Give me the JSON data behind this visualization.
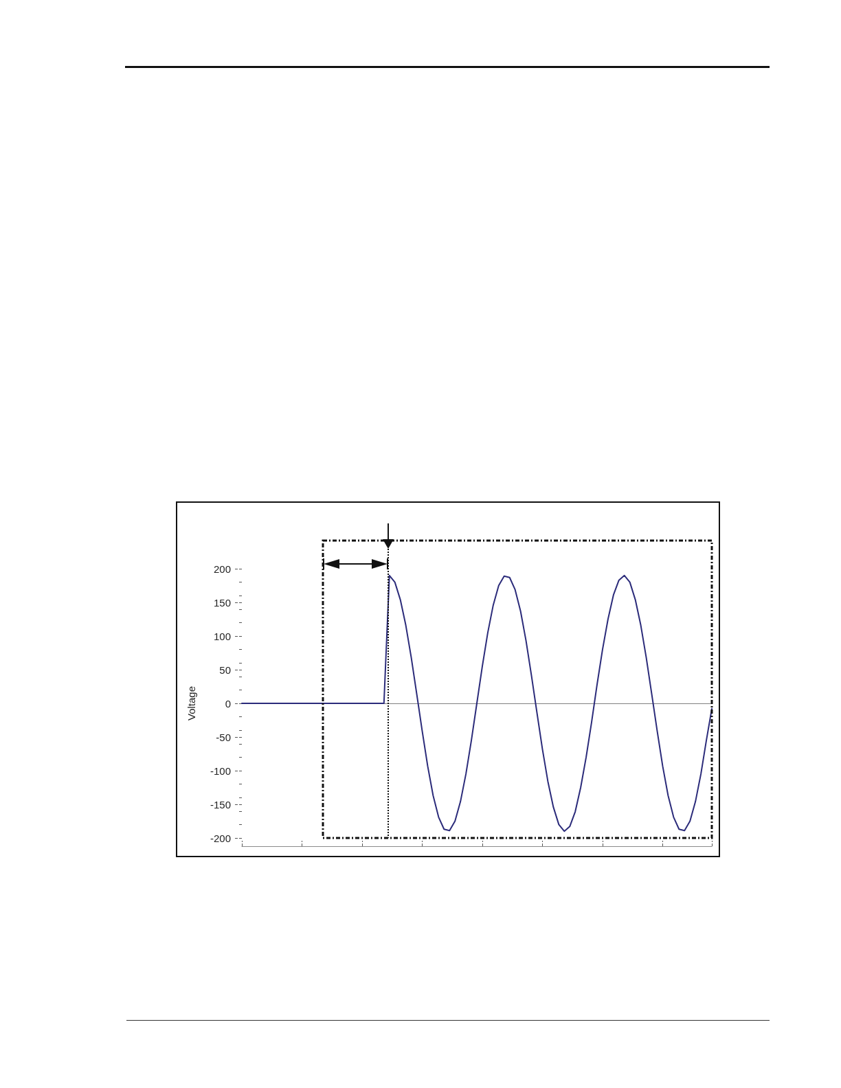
{
  "chart_data": {
    "type": "line",
    "ylabel": "Voltage",
    "categories": [
      null,
      null,
      null,
      null,
      null,
      null,
      null,
      null,
      null,
      null,
      null,
      null,
      null,
      null,
      null,
      null,
      null,
      null,
      null,
      null,
      null,
      null,
      null,
      null,
      null,
      null,
      null,
      null,
      null,
      null,
      null,
      null,
      null,
      null,
      null,
      null,
      null,
      null,
      null,
      null,
      null,
      null,
      null,
      null,
      null,
      null,
      null,
      null,
      null,
      null,
      null,
      null,
      null,
      null,
      null,
      null,
      null,
      null,
      null,
      null,
      null,
      null,
      null,
      null,
      null,
      null,
      null,
      null,
      null,
      null,
      null,
      null,
      null,
      null,
      null,
      null,
      null,
      null,
      null,
      null,
      null,
      null,
      null,
      null,
      null,
      null,
      null
    ],
    "series": [
      {
        "color": "#2b2b7a",
        "values": [
          0,
          0,
          0,
          0,
          0,
          0,
          0,
          0,
          0,
          0,
          0,
          0,
          0,
          0,
          0,
          0,
          0,
          0,
          0,
          0,
          0,
          0,
          0,
          0,
          0,
          0,
          0,
          190,
          180,
          154,
          116,
          68,
          14,
          -41,
          -93,
          -137,
          -169,
          -187,
          -189,
          -175,
          -146,
          -105,
          -55,
          0,
          55,
          105,
          146,
          175,
          189,
          187,
          169,
          137,
          93,
          41,
          -14,
          -68,
          -116,
          -154,
          -180,
          -190,
          -183,
          -161,
          -125,
          -80,
          -28,
          28,
          80,
          125,
          161,
          183,
          190,
          180,
          154,
          116,
          68,
          14,
          -41,
          -93,
          -137,
          -169,
          -187,
          -189,
          -175,
          -146,
          -105,
          -55,
          -8
        ]
      }
    ],
    "ylim": [
      -200,
      200
    ],
    "yticks": [
      -200,
      -150,
      -100,
      -50,
      0,
      50,
      100,
      150,
      200
    ],
    "grid": false,
    "line_style": "solid",
    "tick_labels": "y",
    "ref_lines": [
      {
        "axis": "y",
        "value": 0,
        "color": "#808080"
      }
    ]
  }
}
